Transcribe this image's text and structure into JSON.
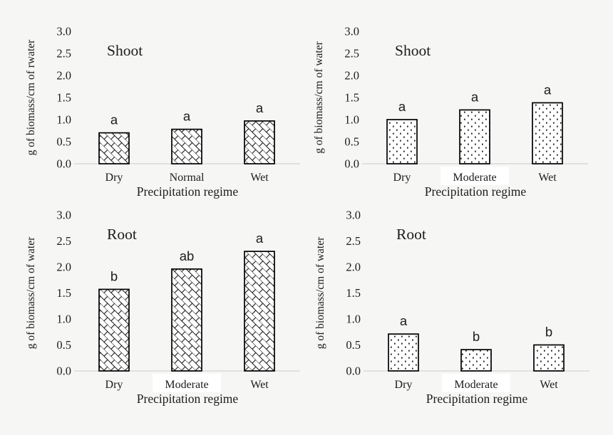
{
  "figure": {
    "description": "Four-panel bar chart figure of shoot and root biomass per cm of water under precipitation regimes"
  },
  "colors": {
    "background": "#f6f6f5",
    "text": "#1c1c1c",
    "axis_line": "#d9d9d9",
    "bar_fill": "#ffffff",
    "bar_stroke": "#000000",
    "pattern_ink": "#1a1a1a",
    "highlight_box": "#ffffff"
  },
  "chart_data": [
    {
      "id": "shoot-hatched",
      "type": "bar",
      "title": "Shoot",
      "ylabel": "g of biomass/cm of rwater",
      "xlabel": "Precipitation regime",
      "categories": [
        "Dry",
        "Normal",
        "Wet"
      ],
      "values": [
        0.7,
        0.78,
        0.97
      ],
      "letters": [
        "a",
        "a",
        "a"
      ],
      "pattern": "diagonal-brick",
      "ylim": [
        0,
        3
      ],
      "yticks": [
        "0.0",
        "0.5",
        "1.0",
        "1.5",
        "2.0",
        "2.5",
        "3.0"
      ],
      "grid": "off",
      "legend": "none",
      "highlight_category": null
    },
    {
      "id": "shoot-dotted",
      "type": "bar",
      "title": "Shoot",
      "ylabel": "g of biomass/cm of water",
      "xlabel": "Precipitation regime",
      "categories": [
        "Dry",
        "Moderate",
        "Wet"
      ],
      "values": [
        1.0,
        1.22,
        1.38
      ],
      "letters": [
        "a",
        "a",
        "a"
      ],
      "pattern": "dots",
      "ylim": [
        0,
        3
      ],
      "yticks": [
        "0.0",
        "0.5",
        "1.0",
        "1.5",
        "2.0",
        "2.5",
        "3.0"
      ],
      "grid": "off",
      "legend": "none",
      "highlight_category": "Moderate"
    },
    {
      "id": "root-hatched",
      "type": "bar",
      "title": "Root",
      "ylabel": "g of biomass/cm of water",
      "xlabel": "Precipitation regime",
      "categories": [
        "Dry",
        "Moderate",
        "Wet"
      ],
      "values": [
        1.57,
        1.96,
        2.3
      ],
      "letters": [
        "b",
        "ab",
        "a"
      ],
      "pattern": "diagonal-brick",
      "ylim": [
        0,
        3
      ],
      "yticks": [
        "0.0",
        "0.5",
        "1.0",
        "1.5",
        "2.0",
        "2.5",
        "3.0"
      ],
      "grid": "off",
      "legend": "none",
      "highlight_category": "Moderate"
    },
    {
      "id": "root-dotted",
      "type": "bar",
      "title": "Root",
      "ylabel": "g of biomass/cm of water",
      "xlabel": "Precipitation regime",
      "categories": [
        "Dry",
        "Moderate",
        "Wet"
      ],
      "values": [
        0.71,
        0.41,
        0.5
      ],
      "letters": [
        "a",
        "b",
        "b"
      ],
      "pattern": "dots",
      "ylim": [
        0,
        3
      ],
      "yticks": [
        "0.0",
        "0.5",
        "1.0",
        "1.5",
        "2.0",
        "2.5",
        "3.0"
      ],
      "grid": "off",
      "legend": "none",
      "highlight_category": "Moderate"
    }
  ]
}
